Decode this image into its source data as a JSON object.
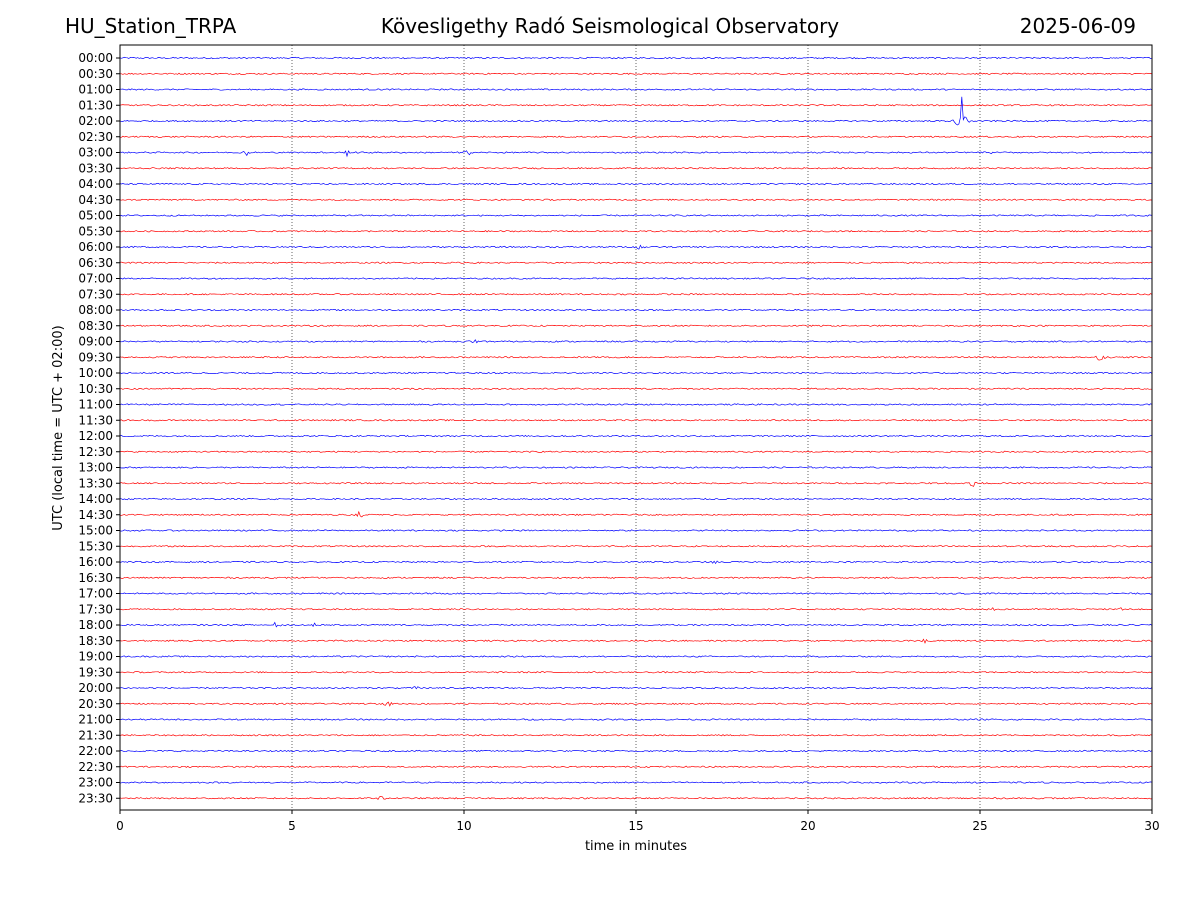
{
  "header": {
    "station": "HU_Station_TRPA",
    "observatory": "Kövesligethy Radó Seismological Observatory",
    "date": "2025-06-09"
  },
  "chart_data": {
    "type": "line",
    "title": "Kövesligethy Radó Seismological Observatory",
    "xlabel": "time in minutes",
    "ylabel": "UTC (local time = UTC + 02:00)",
    "xlim": [
      0,
      30
    ],
    "xticks": [
      "0",
      "5",
      "10",
      "15",
      "20",
      "25",
      "30"
    ],
    "vertical_gridlines_at_minutes": [
      5,
      10,
      15,
      20,
      25
    ],
    "trace_colors": [
      "#0000ff",
      "#ff0000"
    ],
    "rows": [
      "00:00",
      "00:30",
      "01:00",
      "01:30",
      "02:00",
      "02:30",
      "03:00",
      "03:30",
      "04:00",
      "04:30",
      "05:00",
      "05:30",
      "06:00",
      "06:30",
      "07:00",
      "07:30",
      "08:00",
      "08:30",
      "09:00",
      "09:30",
      "10:00",
      "10:30",
      "11:00",
      "11:30",
      "12:00",
      "12:30",
      "13:00",
      "13:30",
      "14:00",
      "14:30",
      "15:00",
      "15:30",
      "16:00",
      "16:30",
      "17:00",
      "17:30",
      "18:00",
      "18:30",
      "19:00",
      "19:30",
      "20:00",
      "20:30",
      "21:00",
      "21:30",
      "22:00",
      "22:30",
      "23:00",
      "23:30"
    ],
    "events": [
      {
        "row": "02:00",
        "minute": 24.45,
        "amplitude": 3.5
      },
      {
        "row": "03:00",
        "minute": 3.7,
        "amplitude": 0.4
      },
      {
        "row": "03:00",
        "minute": 6.0,
        "amplitude": 0.5
      },
      {
        "row": "03:00",
        "minute": 6.6,
        "amplitude": 0.4
      },
      {
        "row": "03:00",
        "minute": 10.1,
        "amplitude": 0.4
      },
      {
        "row": "03:00",
        "minute": 25.3,
        "amplitude": 0.3
      },
      {
        "row": "06:00",
        "minute": 15.1,
        "amplitude": 0.5
      },
      {
        "row": "09:00",
        "minute": 10.3,
        "amplitude": 0.35
      },
      {
        "row": "09:30",
        "minute": 28.5,
        "amplitude": 0.5
      },
      {
        "row": "13:30",
        "minute": 24.8,
        "amplitude": 0.5
      },
      {
        "row": "14:30",
        "minute": 6.95,
        "amplitude": 0.45
      },
      {
        "row": "16:00",
        "minute": 17.3,
        "amplitude": 0.35
      },
      {
        "row": "17:30",
        "minute": 25.3,
        "amplitude": 0.45
      },
      {
        "row": "17:30",
        "minute": 29.1,
        "amplitude": 0.3
      },
      {
        "row": "18:00",
        "minute": 4.5,
        "amplitude": 0.45
      },
      {
        "row": "18:00",
        "minute": 5.6,
        "amplitude": 0.3
      },
      {
        "row": "18:30",
        "minute": 23.4,
        "amplitude": 0.3
      },
      {
        "row": "20:00",
        "minute": 8.6,
        "amplitude": 0.35
      },
      {
        "row": "20:30",
        "minute": 7.8,
        "amplitude": 0.3
      },
      {
        "row": "23:30",
        "minute": 7.6,
        "amplitude": 0.3
      }
    ]
  }
}
